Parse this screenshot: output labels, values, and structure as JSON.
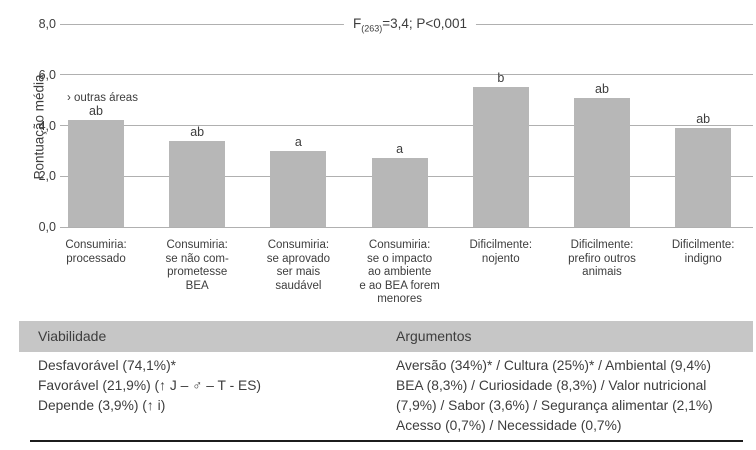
{
  "chart": {
    "title_f": "F",
    "title_sub": "(263)",
    "title_rest": "=3,4; P<0,001",
    "ylabel": "Pontuação média",
    "annotation": "› outras áreas"
  },
  "chart_data": {
    "type": "bar",
    "title": "F(263)=3,4; P<0,001",
    "ylabel": "Pontuação média",
    "xlabel": "",
    "ylim": [
      0,
      8
    ],
    "ytick_values": [
      0,
      2,
      4,
      6,
      8
    ],
    "ytick_labels": [
      "0,0",
      "2,0",
      "4,0",
      "6,0",
      "8,0"
    ],
    "grid": true,
    "legend": "none",
    "annotation": "› outras áreas",
    "categories": [
      "Consumiria: processado",
      "Consumiria: se não comprometesse BEA",
      "Consumiria: se aprovado ser mais saudável",
      "Consumiria: se o impacto ao ambiente e ao BEA forem menores",
      "Dificilmente: nojento",
      "Dificilmente: prefiro outros animais",
      "Dificilmente: indigno"
    ],
    "category_lines": [
      [
        "Consumiria:",
        "processado"
      ],
      [
        "Consumiria:",
        "se não com-",
        "prometesse",
        "BEA"
      ],
      [
        "Consumiria:",
        "se aprovado",
        "ser mais",
        "saudável"
      ],
      [
        "Consumiria:",
        "se o impacto",
        "ao ambiente",
        "e ao BEA forem",
        "menores"
      ],
      [
        "Dificilmente:",
        "nojento"
      ],
      [
        "Dificilmente:",
        "prefiro outros",
        "animais"
      ],
      [
        "Dificilmente:",
        "indigno"
      ]
    ],
    "values": [
      4.2,
      3.4,
      3.0,
      2.7,
      5.5,
      5.1,
      3.9
    ],
    "significance_letters": [
      "ab",
      "ab",
      "a",
      "a",
      "b",
      "ab",
      "ab"
    ]
  },
  "table": {
    "headers": {
      "viability": "Viabilidade",
      "arguments": "Argumentos"
    },
    "viability_lines": [
      "Desfavorável (74,1%)*",
      "Favorável (21,9%) (↑ J – ♂ – T - ES)",
      "Depende (3,9%) (↑ i)"
    ],
    "arguments_lines": [
      "Aversão (34%)* / Cultura (25%)* / Ambiental (9,4%)",
      "BEA (8,3%) / Curiosidade (8,3%) / Valor nutricional",
      "(7,9%) / Sabor (3,6%) / Segurança alimentar (2,1%)",
      "Acesso (0,7%) / Necessidade (0,7%)"
    ]
  },
  "colors": {
    "bar": "#b7b7b7",
    "grid": "#b0b0b0",
    "header_band": "#c6c6c6",
    "text": "#3d3d3d",
    "bottom_rule": "#1c1c1c"
  }
}
